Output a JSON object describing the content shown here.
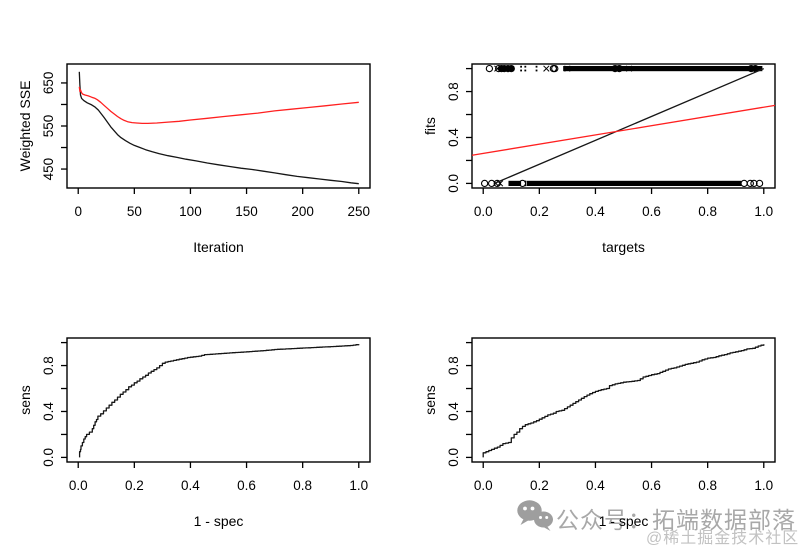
{
  "watermark": {
    "wechat_label": "公众号：拓端数据部落",
    "juejin_label": "@稀土掘金技术社区",
    "icon_name": "wechat-icon",
    "main_color": "#a8a8a8",
    "sub_color": "#c2c2c2",
    "icon_color": "#9e9e9e"
  },
  "colors": {
    "black_line": "#161616",
    "red_line": "#ff2020",
    "axis": "#000000"
  },
  "chart_data": [
    {
      "id": "weighted-sse",
      "type": "line",
      "xlabel": "Iteration",
      "ylabel": "Weighted SSE",
      "xlim": [
        -10,
        260
      ],
      "ylim": [
        406,
        694
      ],
      "xticks": [
        0,
        50,
        100,
        150,
        200,
        250
      ],
      "xtick_labels": [
        "0",
        "50",
        "100",
        "150",
        "200",
        "250"
      ],
      "yticks": [
        450,
        500,
        550,
        600,
        650
      ],
      "ytick_labels": [
        "450",
        "",
        "550",
        "",
        "650"
      ],
      "grid": false,
      "series": [
        {
          "name": "training-sse",
          "color": "black",
          "step": false,
          "points": [
            [
              1,
              676
            ],
            [
              1.5,
              645
            ],
            [
              2,
              622
            ],
            [
              3,
              614
            ],
            [
              5,
              609
            ],
            [
              8,
              604
            ],
            [
              12,
              599
            ],
            [
              15,
              594
            ],
            [
              18,
              587
            ],
            [
              20,
              580
            ],
            [
              23,
              570
            ],
            [
              26,
              559
            ],
            [
              29,
              548
            ],
            [
              32,
              539
            ],
            [
              35,
              530
            ],
            [
              38,
              523
            ],
            [
              42,
              516
            ],
            [
              46,
              510
            ],
            [
              50,
              505
            ],
            [
              55,
              500
            ],
            [
              60,
              495
            ],
            [
              66,
              490
            ],
            [
              72,
              486
            ],
            [
              80,
              481
            ],
            [
              88,
              477
            ],
            [
              96,
              473
            ],
            [
              105,
              469
            ],
            [
              115,
              464
            ],
            [
              125,
              460
            ],
            [
              135,
              456
            ],
            [
              145,
              452
            ],
            [
              155,
              449
            ],
            [
              165,
              445
            ],
            [
              175,
              441
            ],
            [
              185,
              437
            ],
            [
              195,
              433
            ],
            [
              205,
              430
            ],
            [
              215,
              427
            ],
            [
              225,
              424
            ],
            [
              235,
              421
            ],
            [
              243,
              418
            ],
            [
              250,
              416
            ]
          ]
        },
        {
          "name": "validation-sse",
          "color": "red",
          "step": false,
          "points": [
            [
              1,
              641
            ],
            [
              1.5,
              630
            ],
            [
              2,
              634
            ],
            [
              3,
              627
            ],
            [
              4,
              624
            ],
            [
              6,
              622
            ],
            [
              9,
              620
            ],
            [
              12,
              617
            ],
            [
              15,
              614
            ],
            [
              17,
              611
            ],
            [
              20,
              605
            ],
            [
              23,
              598
            ],
            [
              26,
              591
            ],
            [
              29,
              584
            ],
            [
              32,
              578
            ],
            [
              35,
              572
            ],
            [
              38,
              567
            ],
            [
              41,
              563
            ],
            [
              44,
              560
            ],
            [
              48,
              558
            ],
            [
              52,
              557
            ],
            [
              57,
              556
            ],
            [
              62,
              556
            ],
            [
              70,
              557
            ],
            [
              80,
              559
            ],
            [
              90,
              561
            ],
            [
              100,
              564
            ],
            [
              115,
              568
            ],
            [
              130,
              572
            ],
            [
              145,
              576
            ],
            [
              160,
              580
            ],
            [
              175,
              585
            ],
            [
              190,
              589
            ],
            [
              205,
              593
            ],
            [
              220,
              597
            ],
            [
              235,
              601
            ],
            [
              250,
              605
            ]
          ]
        }
      ]
    },
    {
      "id": "fits-vs-targets",
      "type": "scatter",
      "xlabel": "targets",
      "ylabel": "fits",
      "xlim": [
        -0.04,
        1.04
      ],
      "ylim": [
        -0.04,
        1.04
      ],
      "xticks": [
        0,
        0.2,
        0.4,
        0.6,
        0.8,
        1.0
      ],
      "xtick_labels": [
        "0.0",
        "0.2",
        "0.4",
        "0.6",
        "0.8",
        "1.0"
      ],
      "yticks": [
        0,
        0.2,
        0.4,
        0.6,
        0.8,
        1.0
      ],
      "ytick_labels": [
        "0.0",
        "",
        "0.4",
        "",
        "0.8",
        ""
      ],
      "grid": false,
      "bands": [
        {
          "name": "targets-1-band",
          "y": 1.0,
          "solid_runs": [
            [
              0.055,
              0.11
            ],
            [
              0.285,
              0.995
            ]
          ],
          "circles": [
            0.022,
            0.055,
            0.065,
            0.075,
            0.088,
            0.1,
            0.25,
            0.255,
            0.47,
            0.485,
            0.955,
            0.97
          ],
          "crosses": [
            0.05,
            0.225,
            0.3,
            0.52
          ],
          "dots": [
            0.135,
            0.15,
            0.19,
            0.26
          ]
        },
        {
          "name": "targets-0-band",
          "y": 0.0,
          "solid_runs": [
            [
              0.09,
              0.135
            ],
            [
              0.155,
              0.92
            ]
          ],
          "circles": [
            0.005,
            0.03,
            0.05,
            0.14,
            0.93,
            0.952,
            0.965,
            0.985
          ],
          "crosses": [
            0.045,
            0.06
          ],
          "dots": [
            0.15
          ]
        }
      ],
      "lines": [
        {
          "name": "identity-line",
          "color": "black",
          "points": [
            [
              0.04,
              0.0
            ],
            [
              1.0,
              1.0
            ]
          ]
        },
        {
          "name": "regression-line",
          "color": "red",
          "points": [
            [
              -0.04,
              0.245
            ],
            [
              1.04,
              0.68
            ]
          ]
        }
      ]
    },
    {
      "id": "roc-train",
      "type": "line",
      "xlabel": "1 - spec",
      "ylabel": "sens",
      "xlim": [
        -0.04,
        1.04
      ],
      "ylim": [
        -0.04,
        1.04
      ],
      "xticks": [
        0,
        0.2,
        0.4,
        0.6,
        0.8,
        1.0
      ],
      "xtick_labels": [
        "0.0",
        "0.2",
        "0.4",
        "0.6",
        "0.8",
        "1.0"
      ],
      "yticks": [
        0,
        0.2,
        0.4,
        0.6,
        0.8,
        1.0
      ],
      "ytick_labels": [
        "0.0",
        "",
        "0.4",
        "",
        "0.8",
        ""
      ],
      "grid": false,
      "series": [
        {
          "name": "roc-curve-train",
          "color": "black",
          "step": true,
          "points": [
            [
              0.005,
              0.0
            ],
            [
              0.005,
              0.05
            ],
            [
              0.008,
              0.07
            ],
            [
              0.01,
              0.1
            ],
            [
              0.015,
              0.13
            ],
            [
              0.02,
              0.16
            ],
            [
              0.025,
              0.18
            ],
            [
              0.03,
              0.2
            ],
            [
              0.04,
              0.22
            ],
            [
              0.05,
              0.25
            ],
            [
              0.055,
              0.28
            ],
            [
              0.06,
              0.31
            ],
            [
              0.065,
              0.33
            ],
            [
              0.07,
              0.36
            ],
            [
              0.08,
              0.38
            ],
            [
              0.09,
              0.405
            ],
            [
              0.1,
              0.43
            ],
            [
              0.11,
              0.455
            ],
            [
              0.12,
              0.48
            ],
            [
              0.13,
              0.5
            ],
            [
              0.14,
              0.525
            ],
            [
              0.15,
              0.55
            ],
            [
              0.16,
              0.57
            ],
            [
              0.17,
              0.59
            ],
            [
              0.18,
              0.615
            ],
            [
              0.19,
              0.63
            ],
            [
              0.2,
              0.65
            ],
            [
              0.21,
              0.665
            ],
            [
              0.22,
              0.685
            ],
            [
              0.23,
              0.7
            ],
            [
              0.24,
              0.715
            ],
            [
              0.25,
              0.735
            ],
            [
              0.26,
              0.75
            ],
            [
              0.27,
              0.765
            ],
            [
              0.28,
              0.78
            ],
            [
              0.29,
              0.8
            ],
            [
              0.3,
              0.82
            ],
            [
              0.31,
              0.83
            ],
            [
              0.33,
              0.84
            ],
            [
              0.35,
              0.85
            ],
            [
              0.37,
              0.86
            ],
            [
              0.39,
              0.87
            ],
            [
              0.41,
              0.876
            ],
            [
              0.43,
              0.882
            ],
            [
              0.45,
              0.895
            ],
            [
              0.48,
              0.9
            ],
            [
              0.51,
              0.905
            ],
            [
              0.54,
              0.91
            ],
            [
              0.57,
              0.915
            ],
            [
              0.6,
              0.92
            ],
            [
              0.63,
              0.925
            ],
            [
              0.66,
              0.93
            ],
            [
              0.7,
              0.94
            ],
            [
              0.74,
              0.945
            ],
            [
              0.78,
              0.95
            ],
            [
              0.82,
              0.955
            ],
            [
              0.86,
              0.96
            ],
            [
              0.9,
              0.965
            ],
            [
              0.94,
              0.97
            ],
            [
              0.97,
              0.975
            ],
            [
              1.0,
              0.985
            ]
          ]
        }
      ]
    },
    {
      "id": "roc-test",
      "type": "line",
      "xlabel": "1 - spec",
      "ylabel": "sens",
      "xlim": [
        -0.04,
        1.04
      ],
      "ylim": [
        -0.04,
        1.04
      ],
      "xticks": [
        0,
        0.2,
        0.4,
        0.6,
        0.8,
        1.0
      ],
      "xtick_labels": [
        "0.0",
        "0.2",
        "0.4",
        "0.6",
        "0.8",
        "1.0"
      ],
      "yticks": [
        0,
        0.2,
        0.4,
        0.6,
        0.8,
        1.0
      ],
      "ytick_labels": [
        "0.0",
        "",
        "0.4",
        "",
        "0.8",
        ""
      ],
      "grid": false,
      "series": [
        {
          "name": "roc-curve-test",
          "color": "black",
          "step": true,
          "points": [
            [
              0.0,
              0.0
            ],
            [
              0.0,
              0.04
            ],
            [
              0.01,
              0.05
            ],
            [
              0.02,
              0.06
            ],
            [
              0.04,
              0.08
            ],
            [
              0.05,
              0.09
            ],
            [
              0.07,
              0.12
            ],
            [
              0.09,
              0.13
            ],
            [
              0.1,
              0.17
            ],
            [
              0.11,
              0.2
            ],
            [
              0.12,
              0.22
            ],
            [
              0.13,
              0.25
            ],
            [
              0.14,
              0.27
            ],
            [
              0.15,
              0.285
            ],
            [
              0.17,
              0.3
            ],
            [
              0.19,
              0.32
            ],
            [
              0.21,
              0.345
            ],
            [
              0.23,
              0.37
            ],
            [
              0.25,
              0.385
            ],
            [
              0.26,
              0.4
            ],
            [
              0.28,
              0.41
            ],
            [
              0.3,
              0.44
            ],
            [
              0.32,
              0.47
            ],
            [
              0.34,
              0.5
            ],
            [
              0.36,
              0.53
            ],
            [
              0.38,
              0.555
            ],
            [
              0.4,
              0.575
            ],
            [
              0.42,
              0.59
            ],
            [
              0.44,
              0.6
            ],
            [
              0.45,
              0.625
            ],
            [
              0.47,
              0.64
            ],
            [
              0.5,
              0.655
            ],
            [
              0.53,
              0.663
            ],
            [
              0.55,
              0.67
            ],
            [
              0.57,
              0.7
            ],
            [
              0.6,
              0.72
            ],
            [
              0.62,
              0.73
            ],
            [
              0.64,
              0.75
            ],
            [
              0.66,
              0.77
            ],
            [
              0.68,
              0.78
            ],
            [
              0.7,
              0.795
            ],
            [
              0.72,
              0.81
            ],
            [
              0.74,
              0.82
            ],
            [
              0.76,
              0.83
            ],
            [
              0.78,
              0.85
            ],
            [
              0.8,
              0.865
            ],
            [
              0.82,
              0.87
            ],
            [
              0.84,
              0.885
            ],
            [
              0.86,
              0.895
            ],
            [
              0.88,
              0.91
            ],
            [
              0.9,
              0.92
            ],
            [
              0.92,
              0.93
            ],
            [
              0.94,
              0.945
            ],
            [
              0.96,
              0.95
            ],
            [
              0.98,
              0.97
            ],
            [
              1.0,
              0.985
            ]
          ]
        }
      ]
    }
  ]
}
